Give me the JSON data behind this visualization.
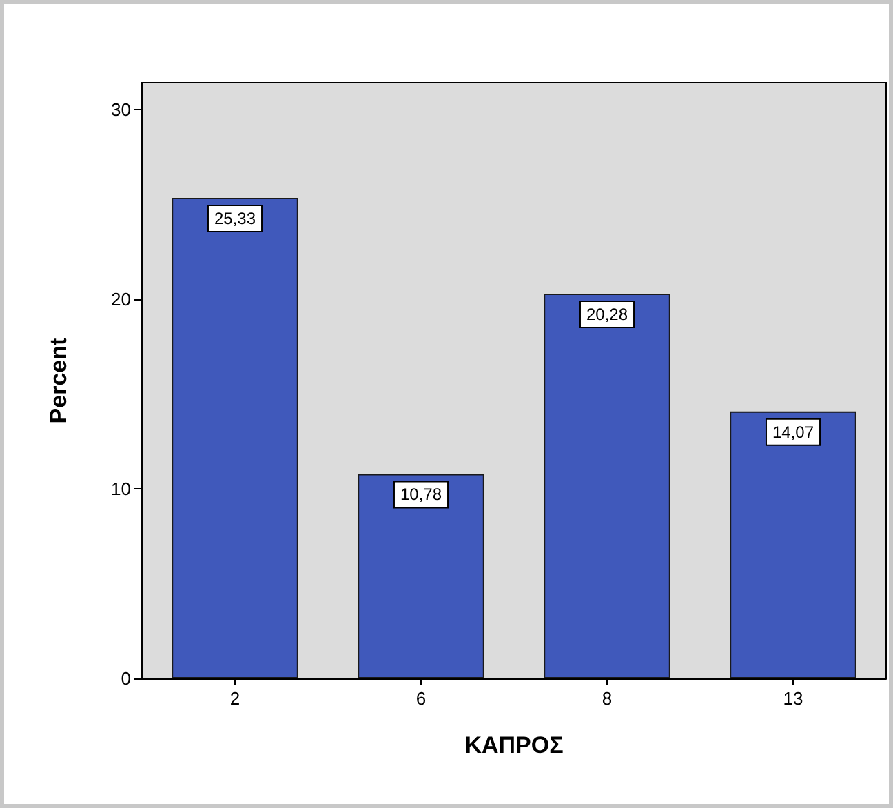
{
  "chart_data": {
    "type": "bar",
    "xlabel": "ΚΑΠΡΟΣ",
    "ylabel": "Percent",
    "categories": [
      "2",
      "6",
      "8",
      "13"
    ],
    "values": [
      25.33,
      10.78,
      20.28,
      14.07
    ],
    "value_labels": [
      "25,33",
      "10,78",
      "20,28",
      "14,07"
    ],
    "color": "#4059bb",
    "ylim": [
      0,
      31.4
    ],
    "yticks": [
      0,
      10,
      20,
      30
    ],
    "grid": false
  }
}
